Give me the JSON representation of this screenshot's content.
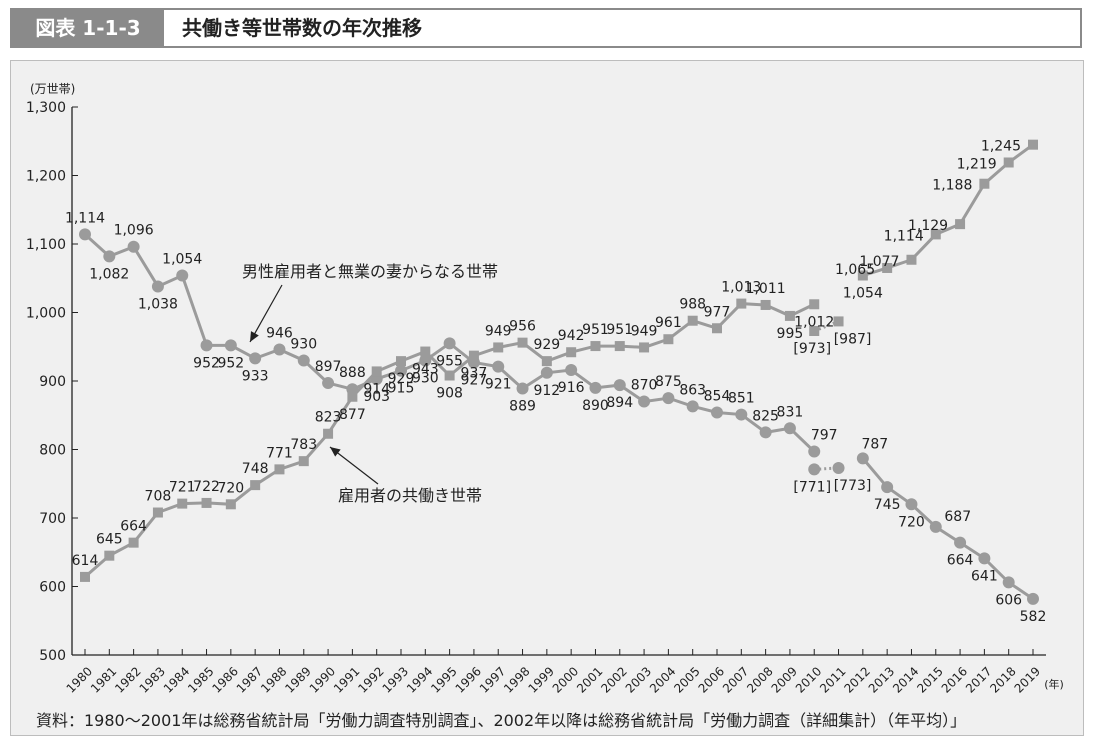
{
  "header": {
    "figure_label": "図表 1-1-3",
    "title": "共働き等世帯数の年次推移"
  },
  "source": "資料：1980〜2001年は総務省統計局「労働力調査特別調査」、2002年以降は総務省統計局「労働力調査（詳細集計）（年平均）」",
  "colors": {
    "line": "#9b9b9b",
    "axis": "#222222",
    "text": "#222222",
    "panel": "#f0f0f0"
  },
  "chart_data": {
    "type": "line",
    "ylabel": "(万世帯)",
    "xlabel": "(年)",
    "ylim": [
      500,
      1300
    ],
    "yticks": [
      500,
      600,
      700,
      800,
      900,
      1000,
      1100,
      1200,
      1300
    ],
    "ytick_labels": [
      "500",
      "600",
      "700",
      "800",
      "900",
      "1,000",
      "1,100",
      "1,200",
      "1,300"
    ],
    "x": [
      1980,
      1981,
      1982,
      1983,
      1984,
      1985,
      1986,
      1987,
      1988,
      1989,
      1990,
      1991,
      1992,
      1993,
      1994,
      1995,
      1996,
      1997,
      1998,
      1999,
      2000,
      2001,
      2002,
      2003,
      2004,
      2005,
      2006,
      2007,
      2008,
      2009,
      2010,
      2011,
      2012,
      2013,
      2014,
      2015,
      2016,
      2017,
      2018,
      2019
    ],
    "grid": false,
    "series": [
      {
        "name": "男性雇用者と無業の妻からなる世帯",
        "marker": "circle",
        "values": [
          1114,
          1082,
          1096,
          1038,
          1054,
          952,
          952,
          933,
          946,
          930,
          897,
          888,
          903,
          915,
          930,
          955,
          927,
          921,
          889,
          912,
          916,
          890,
          894,
          870,
          875,
          863,
          854,
          851,
          825,
          831,
          797,
          null,
          787,
          745,
          720,
          687,
          664,
          641,
          606,
          582
        ],
        "labels": [
          "1,114",
          "1,082",
          "1,096",
          "1,038",
          "1,054",
          "952",
          "952",
          "933",
          "946",
          "930",
          "897",
          "888",
          "903",
          "915",
          "930",
          "955",
          "927",
          "921",
          "889",
          "912",
          "916",
          "890",
          "894",
          "870",
          "875",
          "863",
          "854",
          "851",
          "825",
          "831",
          "797",
          "",
          "787",
          "745",
          "720",
          "687",
          "664",
          "641",
          "606",
          "582"
        ],
        "bracketed": [
          {
            "x": 2010,
            "value": 771,
            "label": "[771]"
          },
          {
            "x": 2011,
            "value": 773,
            "label": "[773]"
          }
        ]
      },
      {
        "name": "雇用者の共働き世帯",
        "marker": "square",
        "values": [
          614,
          645,
          664,
          708,
          721,
          722,
          720,
          748,
          771,
          783,
          823,
          877,
          914,
          929,
          943,
          908,
          937,
          949,
          956,
          929,
          942,
          951,
          951,
          949,
          961,
          988,
          977,
          1013,
          1011,
          995,
          1012,
          null,
          1054,
          1065,
          1077,
          1114,
          1129,
          1188,
          1219,
          1245
        ],
        "labels": [
          "614",
          "645",
          "664",
          "708",
          "721",
          "722",
          "720",
          "748",
          "771",
          "783",
          "823",
          "877",
          "914",
          "929",
          "943",
          "908",
          "937",
          "949",
          "956",
          "929",
          "942",
          "951",
          "951",
          "949",
          "961",
          "988",
          "977",
          "1,013",
          "1,011",
          "995",
          "1,012",
          "",
          "1,054",
          "1,065",
          "1,077",
          "1,114",
          "1,129",
          "1,188",
          "1,219",
          "1,245"
        ],
        "bracketed": [
          {
            "x": 2010,
            "value": 973,
            "label": "[973]"
          },
          {
            "x": 2011,
            "value": 987,
            "label": "[987]"
          }
        ]
      }
    ]
  }
}
